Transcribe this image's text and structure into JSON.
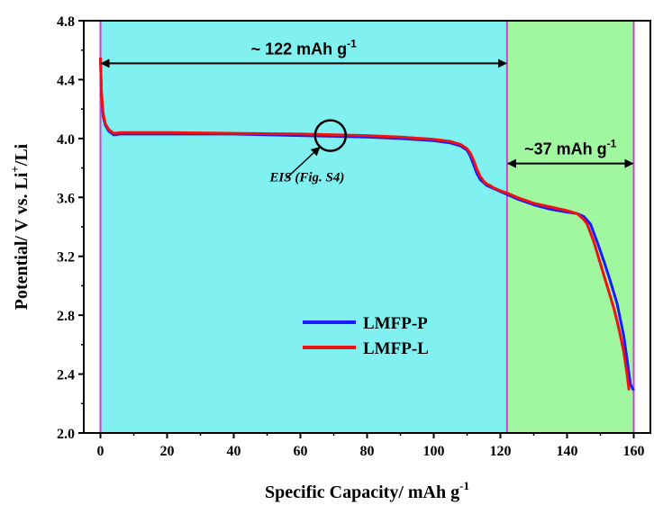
{
  "chart_data": {
    "type": "line",
    "xlabel": "Specific Capacity/ mAh g",
    "xlabel_sup": "-1",
    "ylabel_parts": [
      "Potential/ V vs. Li",
      "+",
      "/Li"
    ],
    "xlim": [
      -5,
      165
    ],
    "ylim": [
      2.0,
      4.8
    ],
    "x_ticks": [
      0,
      20,
      40,
      60,
      80,
      100,
      120,
      140,
      160
    ],
    "y_ticks": [
      2.0,
      2.4,
      2.8,
      3.2,
      3.6,
      4.0,
      4.4,
      4.8
    ],
    "x_tick_labels": [
      "0",
      "20",
      "40",
      "60",
      "80",
      "100",
      "120",
      "140",
      "160"
    ],
    "y_tick_labels": [
      "2.0",
      "2.4",
      "2.8",
      "3.2",
      "3.6",
      "4.0",
      "4.4",
      "4.8"
    ],
    "grid": false,
    "legend_position": "lower-left",
    "regions": [
      {
        "x_range": [
          0,
          122
        ],
        "color": "#80f0f0"
      },
      {
        "x_range": [
          122,
          160
        ],
        "color": "#a0f7a0"
      }
    ],
    "boundary_color": "#d040d0",
    "series": [
      {
        "name": "LMFP-P",
        "color": "#1a1aff",
        "x": [
          0,
          0.3,
          0.8,
          1.5,
          2.5,
          4,
          6,
          10,
          20,
          40,
          60,
          80,
          90,
          100,
          105,
          108,
          110,
          111,
          112,
          113,
          114,
          115,
          116,
          117,
          118,
          120,
          122,
          125,
          130,
          135,
          140,
          143,
          145,
          147,
          149,
          151,
          153,
          155,
          157,
          158,
          159,
          160
        ],
        "values": [
          4.55,
          4.3,
          4.15,
          4.09,
          4.05,
          4.025,
          4.03,
          4.03,
          4.03,
          4.03,
          4.02,
          4.01,
          4.0,
          3.985,
          3.97,
          3.95,
          3.92,
          3.88,
          3.82,
          3.76,
          3.72,
          3.7,
          3.68,
          3.67,
          3.66,
          3.64,
          3.62,
          3.59,
          3.55,
          3.52,
          3.5,
          3.49,
          3.47,
          3.42,
          3.3,
          3.17,
          3.03,
          2.88,
          2.66,
          2.5,
          2.33,
          2.29
        ]
      },
      {
        "name": "LMFP-L",
        "color": "#ee1111",
        "x": [
          0,
          0.3,
          0.8,
          1.5,
          2.5,
          4,
          6,
          10,
          20,
          40,
          60,
          80,
          90,
          100,
          105,
          108,
          110,
          111,
          112,
          113,
          114,
          115,
          116,
          117,
          118,
          120,
          122,
          125,
          130,
          135,
          140,
          143,
          145,
          146,
          148,
          150,
          152,
          154,
          155,
          156,
          157,
          158,
          158.6
        ],
        "values": [
          4.55,
          4.32,
          4.17,
          4.1,
          4.06,
          4.035,
          4.04,
          4.04,
          4.04,
          4.035,
          4.03,
          4.02,
          4.01,
          3.995,
          3.98,
          3.96,
          3.93,
          3.9,
          3.85,
          3.79,
          3.74,
          3.71,
          3.69,
          3.68,
          3.665,
          3.645,
          3.63,
          3.6,
          3.56,
          3.535,
          3.51,
          3.49,
          3.45,
          3.42,
          3.3,
          3.15,
          3.0,
          2.85,
          2.76,
          2.66,
          2.55,
          2.4,
          2.29
        ]
      }
    ],
    "annotations": [
      {
        "text": "~ 122 mAh g",
        "sup": "-1",
        "arrow": [
          0,
          122
        ],
        "y": 4.51
      },
      {
        "text": "~37 mAh g",
        "sup": "-1",
        "arrow": [
          122,
          160
        ],
        "y": 3.83
      },
      {
        "text": "EIS (Fig. S4)",
        "marker_x": 69,
        "marker_y": 4.02,
        "text_x": 62,
        "text_y": 3.71
      }
    ]
  }
}
